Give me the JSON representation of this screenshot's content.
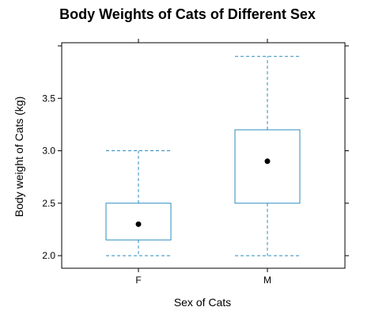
{
  "chart_data": {
    "type": "box",
    "title": "Body Weights of Cats of Different Sex",
    "xlabel": "Sex of Cats",
    "ylabel": "Body weight of Cats (kg)",
    "categories": [
      "F",
      "M"
    ],
    "ylim": [
      1.88,
      4.03
    ],
    "yticks": [
      2.0,
      2.5,
      3.0,
      3.5
    ],
    "ytick_labels": [
      "2.0",
      "2.5",
      "3.0",
      "3.5"
    ],
    "boxes": [
      {
        "category": "F",
        "min": 2.0,
        "q1": 2.15,
        "median": 2.3,
        "q3": 2.5,
        "max": 3.0
      },
      {
        "category": "M",
        "min": 2.0,
        "q1": 2.5,
        "median": 2.9,
        "q3": 3.2,
        "max": 3.9
      }
    ],
    "colors": {
      "box": "#2b8cbe",
      "median_point": "#000000",
      "frame": "#000000"
    },
    "grid": false,
    "legend": "none"
  }
}
